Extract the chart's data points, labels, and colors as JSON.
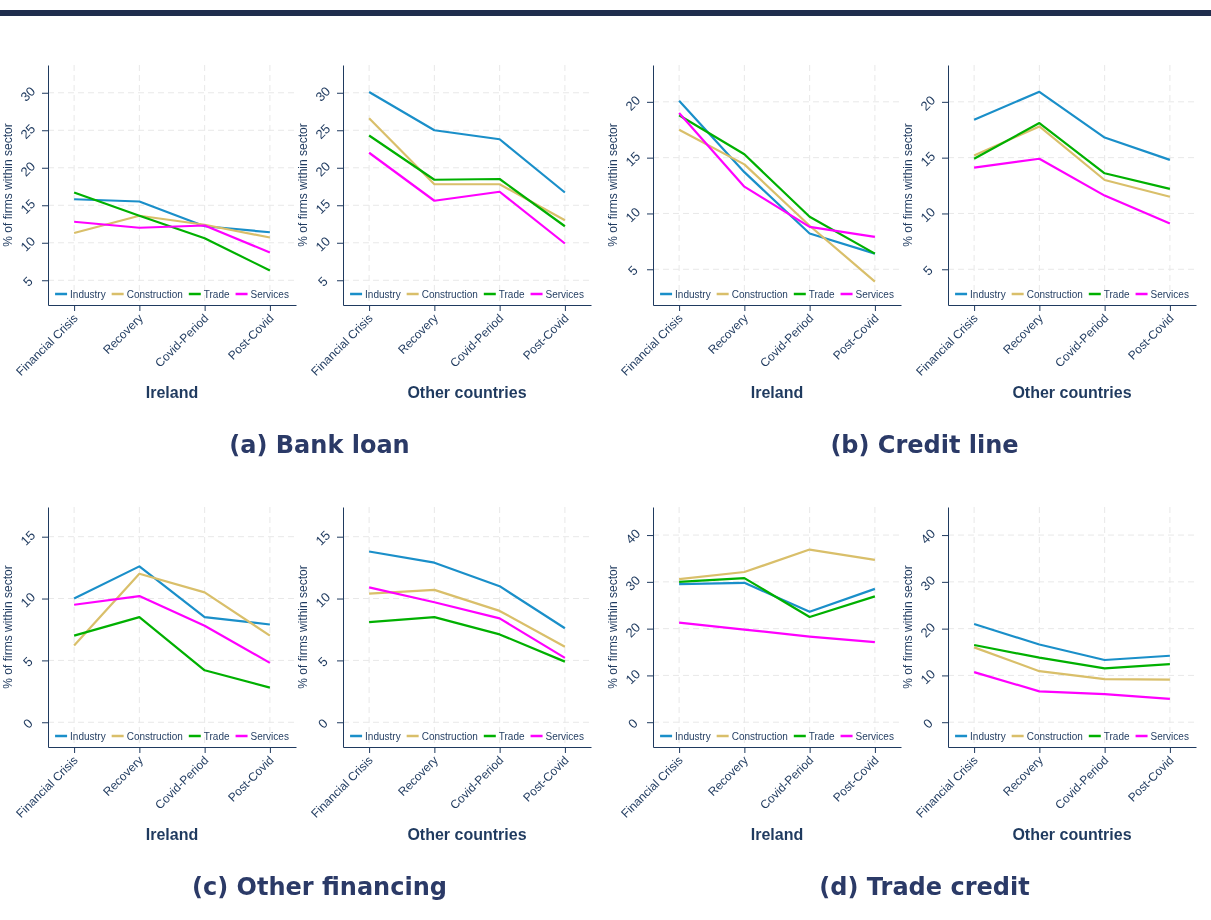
{
  "chart_data": [
    {
      "type": "line",
      "xlabel": "Ireland",
      "ylabel": "% of firms within sector",
      "annotations": [
        "(a) Bank loan"
      ],
      "categories": [
        "Financial Crisis",
        "Recovery",
        "Covid-Period",
        "Post-Covid"
      ],
      "ylim": [
        1.7,
        33.7
      ],
      "yticks": [
        5,
        10,
        15,
        20,
        25,
        30
      ],
      "grid": true,
      "legend": "bottom",
      "series": [
        {
          "name": "Industry",
          "color": "#1a8fc9",
          "values": [
            15.8,
            15.5,
            12.2,
            11.4
          ]
        },
        {
          "name": "Construction",
          "color": "#d9bf6a",
          "values": [
            11.3,
            13.6,
            12.4,
            10.7
          ]
        },
        {
          "name": "Trade",
          "color": "#00b000",
          "values": [
            16.7,
            13.6,
            10.6,
            6.3
          ]
        },
        {
          "name": "Services",
          "color": "#ff00ff",
          "values": [
            12.8,
            12.0,
            12.3,
            8.7
          ]
        }
      ]
    },
    {
      "type": "line",
      "xlabel": "Other countries",
      "ylabel": "% of firms within sector",
      "categories": [
        "Financial Crisis",
        "Recovery",
        "Covid-Period",
        "Post-Covid"
      ],
      "ylim": [
        1.7,
        33.7
      ],
      "yticks": [
        5,
        10,
        15,
        20,
        25,
        30
      ],
      "grid": true,
      "legend": "bottom",
      "series": [
        {
          "name": "Industry",
          "color": "#1a8fc9",
          "values": [
            30.1,
            25.0,
            23.8,
            16.7
          ]
        },
        {
          "name": "Construction",
          "color": "#d9bf6a",
          "values": [
            26.6,
            17.8,
            17.8,
            13.0
          ]
        },
        {
          "name": "Trade",
          "color": "#00b000",
          "values": [
            24.3,
            18.4,
            18.5,
            12.2
          ]
        },
        {
          "name": "Services",
          "color": "#ff00ff",
          "values": [
            22.0,
            15.6,
            16.8,
            9.9
          ]
        }
      ]
    },
    {
      "type": "line",
      "xlabel": "Ireland",
      "ylabel": "% of firms within sector",
      "annotations": [
        "(b) Credit line"
      ],
      "categories": [
        "Financial Crisis",
        "Recovery",
        "Covid-Period",
        "Post-Covid"
      ],
      "ylim": [
        1.8,
        23.3
      ],
      "yticks": [
        5,
        10,
        15,
        20
      ],
      "grid": true,
      "legend": "bottom",
      "series": [
        {
          "name": "Industry",
          "color": "#1a8fc9",
          "values": [
            20.1,
            13.7,
            8.2,
            6.4
          ]
        },
        {
          "name": "Construction",
          "color": "#d9bf6a",
          "values": [
            17.5,
            14.4,
            8.9,
            3.9
          ]
        },
        {
          "name": "Trade",
          "color": "#00b000",
          "values": [
            18.8,
            15.3,
            9.7,
            6.4
          ]
        },
        {
          "name": "Services",
          "color": "#ff00ff",
          "values": [
            19.0,
            12.4,
            8.8,
            7.9
          ]
        }
      ]
    },
    {
      "type": "line",
      "xlabel": "Other countries",
      "ylabel": "% of firms within sector",
      "categories": [
        "Financial Crisis",
        "Recovery",
        "Covid-Period",
        "Post-Covid"
      ],
      "ylim": [
        1.8,
        23.3
      ],
      "yticks": [
        5,
        10,
        15,
        20
      ],
      "grid": true,
      "legend": "bottom",
      "series": [
        {
          "name": "Industry",
          "color": "#1a8fc9",
          "values": [
            18.4,
            20.9,
            16.8,
            14.8
          ]
        },
        {
          "name": "Construction",
          "color": "#d9bf6a",
          "values": [
            15.2,
            17.8,
            13.0,
            11.5
          ]
        },
        {
          "name": "Trade",
          "color": "#00b000",
          "values": [
            14.9,
            18.1,
            13.6,
            12.2
          ]
        },
        {
          "name": "Services",
          "color": "#ff00ff",
          "values": [
            14.1,
            14.9,
            11.6,
            9.1
          ]
        }
      ]
    },
    {
      "type": "line",
      "xlabel": "Ireland",
      "ylabel": "% of firms within sector",
      "annotations": [
        "(c) Other financing"
      ],
      "categories": [
        "Financial Crisis",
        "Recovery",
        "Covid-Period",
        "Post-Covid"
      ],
      "ylim": [
        -2.0,
        17.4
      ],
      "yticks": [
        0,
        5,
        10,
        15
      ],
      "grid": true,
      "legend": "bottom",
      "series": [
        {
          "name": "Industry",
          "color": "#1a8fc9",
          "values": [
            10.0,
            12.6,
            8.5,
            7.9
          ]
        },
        {
          "name": "Construction",
          "color": "#d9bf6a",
          "values": [
            6.2,
            12.0,
            10.5,
            7.0
          ]
        },
        {
          "name": "Trade",
          "color": "#00b000",
          "values": [
            7.0,
            8.5,
            4.2,
            2.8
          ]
        },
        {
          "name": "Services",
          "color": "#ff00ff",
          "values": [
            9.5,
            10.2,
            7.8,
            4.8
          ]
        }
      ]
    },
    {
      "type": "line",
      "xlabel": "Other countries",
      "ylabel": "% of firms within sector",
      "categories": [
        "Financial Crisis",
        "Recovery",
        "Covid-Period",
        "Post-Covid"
      ],
      "ylim": [
        -2.0,
        17.4
      ],
      "yticks": [
        0,
        5,
        10,
        15
      ],
      "grid": true,
      "legend": "bottom",
      "series": [
        {
          "name": "Industry",
          "color": "#1a8fc9",
          "values": [
            13.8,
            12.9,
            11.0,
            7.6
          ]
        },
        {
          "name": "Construction",
          "color": "#d9bf6a",
          "values": [
            10.4,
            10.7,
            9.0,
            6.1
          ]
        },
        {
          "name": "Trade",
          "color": "#00b000",
          "values": [
            8.1,
            8.5,
            7.1,
            4.9
          ]
        },
        {
          "name": "Services",
          "color": "#ff00ff",
          "values": [
            10.9,
            9.7,
            8.4,
            5.2
          ]
        }
      ]
    },
    {
      "type": "line",
      "xlabel": "Ireland",
      "ylabel": "% of firms within sector",
      "annotations": [
        "(d) Trade credit"
      ],
      "categories": [
        "Financial Crisis",
        "Recovery",
        "Covid-Period",
        "Post-Covid"
      ],
      "ylim": [
        -5.3,
        46
      ],
      "yticks": [
        0,
        10,
        20,
        30,
        40
      ],
      "grid": true,
      "legend": "bottom",
      "series": [
        {
          "name": "Industry",
          "color": "#1a8fc9",
          "values": [
            29.5,
            29.8,
            23.6,
            28.5
          ]
        },
        {
          "name": "Construction",
          "color": "#d9bf6a",
          "values": [
            30.6,
            32.1,
            36.9,
            34.7
          ]
        },
        {
          "name": "Trade",
          "color": "#00b000",
          "values": [
            30.0,
            30.8,
            22.5,
            26.9
          ]
        },
        {
          "name": "Services",
          "color": "#ff00ff",
          "values": [
            21.3,
            19.8,
            18.3,
            17.1
          ]
        }
      ]
    },
    {
      "type": "line",
      "xlabel": "Other countries",
      "ylabel": "% of firms within sector",
      "categories": [
        "Financial Crisis",
        "Recovery",
        "Covid-Period",
        "Post-Covid"
      ],
      "ylim": [
        -5.3,
        46
      ],
      "yticks": [
        0,
        10,
        20,
        30,
        40
      ],
      "grid": true,
      "legend": "bottom",
      "series": [
        {
          "name": "Industry",
          "color": "#1a8fc9",
          "values": [
            21.0,
            16.6,
            13.3,
            14.2
          ]
        },
        {
          "name": "Construction",
          "color": "#d9bf6a",
          "values": [
            16.0,
            10.9,
            9.2,
            9.1
          ]
        },
        {
          "name": "Trade",
          "color": "#00b000",
          "values": [
            16.5,
            13.8,
            11.5,
            12.4
          ]
        },
        {
          "name": "Services",
          "color": "#ff00ff",
          "values": [
            10.7,
            6.6,
            6.0,
            5.0
          ]
        }
      ]
    }
  ]
}
